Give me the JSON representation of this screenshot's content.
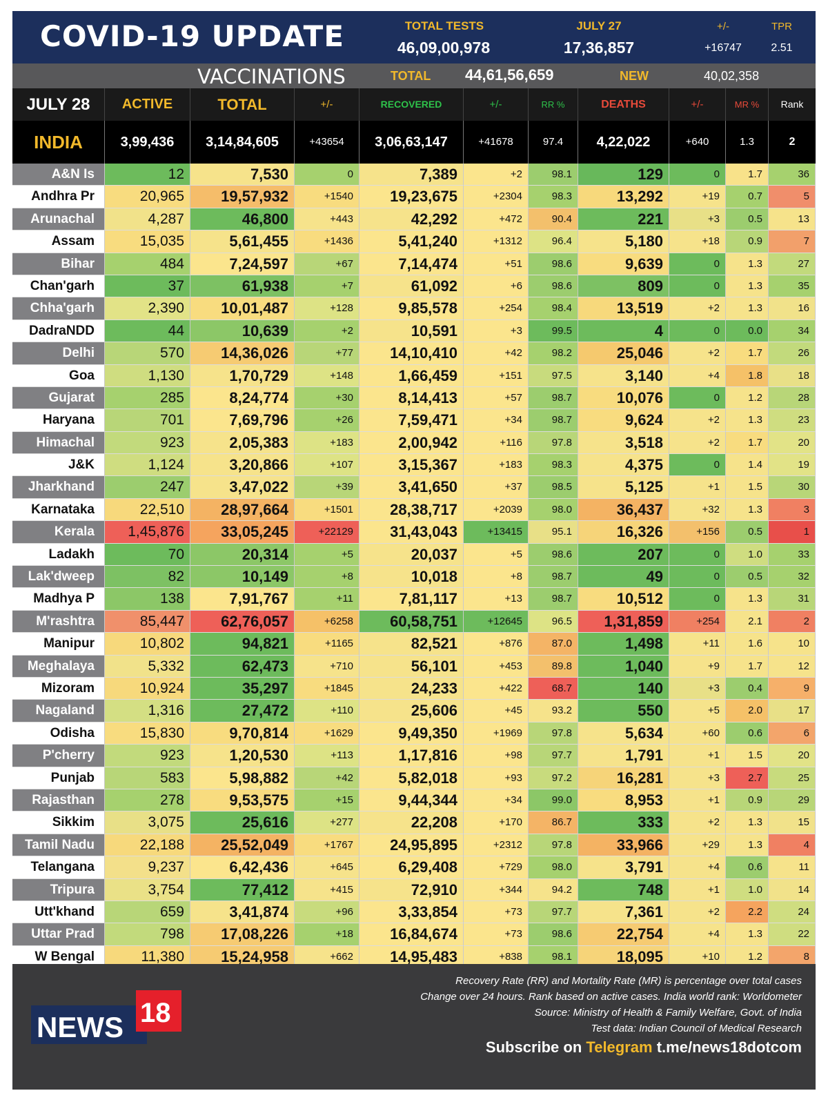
{
  "header": {
    "title": "COVID-19 UPDATE",
    "total_tests_label": "TOTAL TESTS",
    "total_tests_value": "46,09,00,978",
    "date_label": "JULY 27",
    "date_value": "17,36,857",
    "change_label": "+/-",
    "change_value": "+16747",
    "tpr_label": "TPR",
    "tpr_value": "2.51"
  },
  "vaccinations": {
    "title": "VACCINATIONS",
    "total_label": "TOTAL",
    "total_value": "44,61,56,659",
    "new_label": "NEW",
    "new_value": "40,02,358"
  },
  "columns": {
    "date": "JULY 28",
    "active": "ACTIVE",
    "total": "TOTAL",
    "total_change": "+/-",
    "recovered": "RECOVERED",
    "rec_change": "+/-",
    "rr": "RR %",
    "deaths": "DEATHS",
    "death_change": "+/-",
    "mr": "MR %",
    "rank": "Rank"
  },
  "india": {
    "name": "INDIA",
    "active": "3,99,436",
    "total": "3,14,84,605",
    "total_change": "+43654",
    "recovered": "3,06,63,147",
    "rec_change": "+41678",
    "rr": "97.4",
    "deaths": "4,22,022",
    "death_change": "+640",
    "mr": "1.3",
    "rank": "2"
  },
  "rows": [
    {
      "name": "A&N Is",
      "active": "12",
      "total": "7,530",
      "tc": "0",
      "rec": "7,389",
      "rc": "+2",
      "rr": "98.1",
      "deaths": "129",
      "dc": "0",
      "mr": "1.7",
      "rank": "36",
      "c": [
        "#6dbb5c",
        "#f6e38b",
        "#a6d16e",
        "#f6e38b",
        "#fbe58d",
        "#9ccd6e",
        "#68b85b",
        "#6dbb5c",
        "#f8e28a",
        "#a6d16e"
      ]
    },
    {
      "name": "Andhra Pr",
      "active": "20,965",
      "total": "19,57,932",
      "tc": "+1540",
      "rec": "19,23,675",
      "rc": "+2304",
      "rr": "98.3",
      "deaths": "13,292",
      "dc": "+19",
      "mr": "0.7",
      "rank": "5",
      "c": [
        "#f8dc7f",
        "#f5bd6a",
        "#f8dc7f",
        "#fbe58d",
        "#fbe58d",
        "#a6d16e",
        "#f7d97c",
        "#f6e38b",
        "#a6d16e",
        "#f08e6b"
      ]
    },
    {
      "name": "Arunachal",
      "active": "4,287",
      "total": "46,800",
      "tc": "+443",
      "rec": "42,292",
      "rc": "+472",
      "rr": "90.4",
      "deaths": "221",
      "dc": "+3",
      "mr": "0.5",
      "rank": "13",
      "c": [
        "#f1e28a",
        "#6dbb5c",
        "#f6e38b",
        "#f6e38b",
        "#fbe58d",
        "#f3c06c",
        "#6dbb5c",
        "#e8e087",
        "#9ccd6e",
        "#f6e38b"
      ]
    },
    {
      "name": "Assam",
      "active": "15,035",
      "total": "5,61,455",
      "tc": "+1436",
      "rec": "5,41,240",
      "rc": "+1312",
      "rr": "96.4",
      "deaths": "5,180",
      "dc": "+18",
      "mr": "0.9",
      "rank": "7",
      "c": [
        "#f8dc7f",
        "#f6e38b",
        "#f8dc7f",
        "#fbe58d",
        "#fbe58d",
        "#dde385",
        "#f6e38b",
        "#f6e38b",
        "#b8d678",
        "#f2a06b"
      ]
    },
    {
      "name": "Bihar",
      "active": "484",
      "total": "7,24,597",
      "tc": "+67",
      "rec": "7,14,474",
      "rc": "+51",
      "rr": "98.6",
      "deaths": "9,639",
      "dc": "0",
      "mr": "1.3",
      "rank": "27",
      "c": [
        "#a6d16e",
        "#fbe58d",
        "#b8d678",
        "#fbe58d",
        "#fbe58d",
        "#9ccd6e",
        "#f8dc7f",
        "#6dbb5c",
        "#f6e38b",
        "#c2da7c"
      ]
    },
    {
      "name": "Chan'garh",
      "active": "37",
      "total": "61,938",
      "tc": "+7",
      "rec": "61,092",
      "rc": "+6",
      "rr": "98.6",
      "deaths": "809",
      "dc": "0",
      "mr": "1.3",
      "rank": "35",
      "c": [
        "#6dbb5c",
        "#7dc163",
        "#a6d16e",
        "#f6e38b",
        "#fbe58d",
        "#9ccd6e",
        "#7dc163",
        "#6dbb5c",
        "#f6e38b",
        "#a6d16e"
      ]
    },
    {
      "name": "Chha'garh",
      "active": "2,390",
      "total": "10,01,487",
      "tc": "+128",
      "rec": "9,85,578",
      "rc": "+254",
      "rr": "98.4",
      "deaths": "13,519",
      "dc": "+2",
      "mr": "1.3",
      "rank": "16",
      "c": [
        "#e2e387",
        "#f8dc7f",
        "#dde385",
        "#fbe58d",
        "#fbe58d",
        "#a6d16e",
        "#f7d97c",
        "#f6e38b",
        "#f6e38b",
        "#f1e28a"
      ]
    },
    {
      "name": "DadraNDD",
      "active": "44",
      "total": "10,639",
      "tc": "+2",
      "rec": "10,591",
      "rc": "+3",
      "rr": "99.5",
      "deaths": "4",
      "dc": "0",
      "mr": "0.0",
      "rank": "34",
      "c": [
        "#6dbb5c",
        "#8cc767",
        "#a6d16e",
        "#f6e38b",
        "#fbe58d",
        "#6dbb5c",
        "#6dbb5c",
        "#6dbb5c",
        "#6dbb5c",
        "#a6d16e"
      ]
    },
    {
      "name": "Delhi",
      "active": "570",
      "total": "14,36,026",
      "tc": "+77",
      "rec": "14,10,410",
      "rc": "+42",
      "rr": "98.2",
      "deaths": "25,046",
      "dc": "+2",
      "mr": "1.7",
      "rank": "26",
      "c": [
        "#b8d678",
        "#f6cb72",
        "#b8d678",
        "#fbe58d",
        "#fbe58d",
        "#a6d16e",
        "#f5c96e",
        "#f6e38b",
        "#f8dc7f",
        "#c2da7c"
      ]
    },
    {
      "name": "Goa",
      "active": "1,130",
      "total": "1,70,729",
      "tc": "+148",
      "rec": "1,66,459",
      "rc": "+151",
      "rr": "97.5",
      "deaths": "3,140",
      "dc": "+4",
      "mr": "1.8",
      "rank": "18",
      "c": [
        "#cfdd80",
        "#f6e38b",
        "#dde385",
        "#fbe58d",
        "#fbe58d",
        "#c8db7d",
        "#f6e38b",
        "#f6e38b",
        "#f5c168",
        "#e8e087"
      ]
    },
    {
      "name": "Gujarat",
      "active": "285",
      "total": "8,24,774",
      "tc": "+30",
      "rec": "8,14,413",
      "rc": "+57",
      "rr": "98.7",
      "deaths": "10,076",
      "dc": "0",
      "mr": "1.2",
      "rank": "28",
      "c": [
        "#a6d16e",
        "#fbe58d",
        "#a6d16e",
        "#fbe58d",
        "#fbe58d",
        "#9ccd6e",
        "#f8dc7f",
        "#6dbb5c",
        "#f6e38b",
        "#b8d678"
      ]
    },
    {
      "name": "Haryana",
      "active": "701",
      "total": "7,69,796",
      "tc": "+26",
      "rec": "7,59,471",
      "rc": "+34",
      "rr": "98.7",
      "deaths": "9,624",
      "dc": "+2",
      "mr": "1.3",
      "rank": "23",
      "c": [
        "#b8d678",
        "#fbe58d",
        "#a6d16e",
        "#fbe58d",
        "#fbe58d",
        "#9ccd6e",
        "#f8dc7f",
        "#f6e38b",
        "#f6e38b",
        "#cfdd80"
      ]
    },
    {
      "name": "Himachal",
      "active": "923",
      "total": "2,05,383",
      "tc": "+183",
      "rec": "2,00,942",
      "rc": "+116",
      "rr": "97.8",
      "deaths": "3,518",
      "dc": "+2",
      "mr": "1.7",
      "rank": "20",
      "c": [
        "#c2da7c",
        "#f6e38b",
        "#dde385",
        "#fbe58d",
        "#fbe58d",
        "#b8d678",
        "#f6e38b",
        "#f6e38b",
        "#f8dc7f",
        "#e2e387"
      ]
    },
    {
      "name": "J&K",
      "active": "1,124",
      "total": "3,20,866",
      "tc": "+107",
      "rec": "3,15,367",
      "rc": "+183",
      "rr": "98.3",
      "deaths": "4,375",
      "dc": "0",
      "mr": "1.4",
      "rank": "19",
      "c": [
        "#cfdd80",
        "#f6e38b",
        "#dde385",
        "#fbe58d",
        "#fbe58d",
        "#a6d16e",
        "#f6e38b",
        "#6dbb5c",
        "#f6e38b",
        "#e2e387"
      ]
    },
    {
      "name": "Jharkhand",
      "active": "247",
      "total": "3,47,022",
      "tc": "+39",
      "rec": "3,41,650",
      "rc": "+37",
      "rr": "98.5",
      "deaths": "5,125",
      "dc": "+1",
      "mr": "1.5",
      "rank": "30",
      "c": [
        "#9ccd6e",
        "#f6e38b",
        "#b8d678",
        "#fbe58d",
        "#fbe58d",
        "#9ccd6e",
        "#f6e38b",
        "#f6e38b",
        "#f6e38b",
        "#b8d678"
      ]
    },
    {
      "name": "Karnataka",
      "active": "22,510",
      "total": "28,97,664",
      "tc": "+1501",
      "rec": "28,38,717",
      "rc": "+2039",
      "rr": "98.0",
      "deaths": "36,437",
      "dc": "+32",
      "mr": "1.3",
      "rank": "3",
      "c": [
        "#f7d97c",
        "#f4b363",
        "#f8dc7f",
        "#fbe58d",
        "#fbe58d",
        "#a6d16e",
        "#f4b363",
        "#f6e38b",
        "#f6e38b",
        "#f08062"
      ]
    },
    {
      "name": "Kerala",
      "active": "1,45,876",
      "total": "33,05,245",
      "tc": "+22129",
      "rec": "31,43,043",
      "rc": "+13415",
      "rr": "95.1",
      "deaths": "16,326",
      "dc": "+156",
      "mr": "0.5",
      "rank": "1",
      "c": [
        "#ee6058",
        "#f5a45e",
        "#ee6058",
        "#fbe58d",
        "#6dbb5c",
        "#e8e087",
        "#f6d479",
        "#f3c06c",
        "#9ccd6e",
        "#e84f4a"
      ]
    },
    {
      "name": "Ladakh",
      "active": "70",
      "total": "20,314",
      "tc": "+5",
      "rec": "20,037",
      "rc": "+5",
      "rr": "98.6",
      "deaths": "207",
      "dc": "0",
      "mr": "1.0",
      "rank": "33",
      "c": [
        "#6dbb5c",
        "#8cc767",
        "#a6d16e",
        "#f6e38b",
        "#fbe58d",
        "#9ccd6e",
        "#6dbb5c",
        "#6dbb5c",
        "#cfdd80",
        "#a6d16e"
      ]
    },
    {
      "name": "Lak'dweep",
      "active": "82",
      "total": "10,149",
      "tc": "+8",
      "rec": "10,018",
      "rc": "+8",
      "rr": "98.7",
      "deaths": "49",
      "dc": "0",
      "mr": "0.5",
      "rank": "32",
      "c": [
        "#7dc163",
        "#8cc767",
        "#a6d16e",
        "#f6e38b",
        "#fbe58d",
        "#9ccd6e",
        "#6dbb5c",
        "#6dbb5c",
        "#9ccd6e",
        "#a6d16e"
      ]
    },
    {
      "name": "Madhya P",
      "active": "138",
      "total": "7,91,767",
      "tc": "+11",
      "rec": "7,81,117",
      "rc": "+13",
      "rr": "98.7",
      "deaths": "10,512",
      "dc": "0",
      "mr": "1.3",
      "rank": "31",
      "c": [
        "#8cc767",
        "#fbe58d",
        "#a6d16e",
        "#fbe58d",
        "#fbe58d",
        "#9ccd6e",
        "#f8dc7f",
        "#6dbb5c",
        "#f6e38b",
        "#b8d678"
      ]
    },
    {
      "name": "M'rashtra",
      "active": "85,447",
      "total": "62,76,057",
      "tc": "+6258",
      "rec": "60,58,751",
      "rc": "+12645",
      "rr": "96.5",
      "deaths": "1,31,859",
      "dc": "+254",
      "mr": "2.1",
      "rank": "2",
      "c": [
        "#f0906b",
        "#ee6058",
        "#f5c168",
        "#6dbb5c",
        "#6dbb5c",
        "#dde385",
        "#ee6058",
        "#f08062",
        "#f6e38b",
        "#f08062"
      ]
    },
    {
      "name": "Manipur",
      "active": "10,802",
      "total": "94,821",
      "tc": "+1165",
      "rec": "82,521",
      "rc": "+876",
      "rr": "87.0",
      "deaths": "1,498",
      "dc": "+11",
      "mr": "1.6",
      "rank": "10",
      "c": [
        "#f7d97c",
        "#6dbb5c",
        "#f8dc7f",
        "#f6e38b",
        "#fbe58d",
        "#f4b466",
        "#6dbb5c",
        "#f6e38b",
        "#f6e38b",
        "#f6e38b"
      ]
    },
    {
      "name": "Meghalaya",
      "active": "5,332",
      "total": "62,473",
      "tc": "+710",
      "rec": "56,101",
      "rc": "+453",
      "rr": "89.8",
      "deaths": "1,040",
      "dc": "+9",
      "mr": "1.7",
      "rank": "12",
      "c": [
        "#f1e28a",
        "#6dbb5c",
        "#f6e38b",
        "#f6e38b",
        "#fbe58d",
        "#f3c06c",
        "#6dbb5c",
        "#f6e38b",
        "#f6e38b",
        "#f6e38b"
      ]
    },
    {
      "name": "Mizoram",
      "active": "10,924",
      "total": "35,297",
      "tc": "+1845",
      "rec": "24,233",
      "rc": "+422",
      "rr": "68.7",
      "deaths": "140",
      "dc": "+3",
      "mr": "0.4",
      "rank": "9",
      "c": [
        "#f7d97c",
        "#6dbb5c",
        "#f8dc7f",
        "#f6e38b",
        "#fbe58d",
        "#ee6058",
        "#6dbb5c",
        "#e8e087",
        "#9ccd6e",
        "#f6b06a"
      ]
    },
    {
      "name": "Nagaland",
      "active": "1,316",
      "total": "27,472",
      "tc": "+110",
      "rec": "25,606",
      "rc": "+45",
      "rr": "93.2",
      "deaths": "550",
      "dc": "+5",
      "mr": "2.0",
      "rank": "17",
      "c": [
        "#d4df83",
        "#6dbb5c",
        "#dde385",
        "#f6e38b",
        "#fbe58d",
        "#f6e38b",
        "#6dbb5c",
        "#f6e38b",
        "#f5c168",
        "#e8e087"
      ]
    },
    {
      "name": "Odisha",
      "active": "15,830",
      "total": "9,70,814",
      "tc": "+1629",
      "rec": "9,49,350",
      "rc": "+1969",
      "rr": "97.8",
      "deaths": "5,634",
      "dc": "+60",
      "mr": "0.6",
      "rank": "6",
      "c": [
        "#f8dc7f",
        "#f8dc7f",
        "#f8dc7f",
        "#fbe58d",
        "#fbe58d",
        "#b8d678",
        "#f6e38b",
        "#f6e38b",
        "#9ccd6e",
        "#f3a56b"
      ]
    },
    {
      "name": "P'cherry",
      "active": "923",
      "total": "1,20,530",
      "tc": "+113",
      "rec": "1,17,816",
      "rc": "+98",
      "rr": "97.7",
      "deaths": "1,791",
      "dc": "+1",
      "mr": "1.5",
      "rank": "20",
      "c": [
        "#c2da7c",
        "#f6e38b",
        "#dde385",
        "#fbe58d",
        "#fbe58d",
        "#b8d678",
        "#f6e38b",
        "#f6e38b",
        "#f6e38b",
        "#e2e387"
      ]
    },
    {
      "name": "Punjab",
      "active": "583",
      "total": "5,98,882",
      "tc": "+42",
      "rec": "5,82,018",
      "rc": "+93",
      "rr": "97.2",
      "deaths": "16,281",
      "dc": "+3",
      "mr": "2.7",
      "rank": "25",
      "c": [
        "#b8d678",
        "#fbe58d",
        "#b8d678",
        "#fbe58d",
        "#fbe58d",
        "#c8db7d",
        "#f6d479",
        "#f6e38b",
        "#ee6058",
        "#c8db7d"
      ]
    },
    {
      "name": "Rajasthan",
      "active": "278",
      "total": "9,53,575",
      "tc": "+15",
      "rec": "9,44,344",
      "rc": "+34",
      "rr": "99.0",
      "deaths": "8,953",
      "dc": "+1",
      "mr": "0.9",
      "rank": "29",
      "c": [
        "#a6d16e",
        "#f8dc7f",
        "#a6d16e",
        "#fbe58d",
        "#fbe58d",
        "#8cc767",
        "#f8dc7f",
        "#f6e38b",
        "#b8d678",
        "#b8d678"
      ]
    },
    {
      "name": "Sikkim",
      "active": "3,075",
      "total": "25,616",
      "tc": "+277",
      "rec": "22,208",
      "rc": "+170",
      "rr": "86.7",
      "deaths": "333",
      "dc": "+2",
      "mr": "1.3",
      "rank": "15",
      "c": [
        "#e8e087",
        "#6dbb5c",
        "#dde385",
        "#f6e38b",
        "#fbe58d",
        "#f4b466",
        "#6dbb5c",
        "#f6e38b",
        "#f6e38b",
        "#f1e28a"
      ]
    },
    {
      "name": "Tamil Nadu",
      "active": "22,188",
      "total": "25,52,049",
      "tc": "+1767",
      "rec": "24,95,895",
      "rc": "+2312",
      "rr": "97.8",
      "deaths": "33,966",
      "dc": "+29",
      "mr": "1.3",
      "rank": "4",
      "c": [
        "#f7d97c",
        "#f4b363",
        "#f8dc7f",
        "#fbe58d",
        "#fbe58d",
        "#b8d678",
        "#f4b363",
        "#f6e38b",
        "#f6e38b",
        "#f08062"
      ]
    },
    {
      "name": "Telangana",
      "active": "9,237",
      "total": "6,42,436",
      "tc": "+645",
      "rec": "6,29,408",
      "rc": "+729",
      "rr": "98.0",
      "deaths": "3,791",
      "dc": "+4",
      "mr": "0.6",
      "rank": "11",
      "c": [
        "#f3e08a",
        "#fbe58d",
        "#f6e38b",
        "#fbe58d",
        "#fbe58d",
        "#a6d16e",
        "#f6e38b",
        "#f6e38b",
        "#9ccd6e",
        "#f6e38b"
      ]
    },
    {
      "name": "Tripura",
      "active": "3,754",
      "total": "77,412",
      "tc": "+415",
      "rec": "72,910",
      "rc": "+344",
      "rr": "94.2",
      "deaths": "748",
      "dc": "+1",
      "mr": "1.0",
      "rank": "14",
      "c": [
        "#eae187",
        "#6dbb5c",
        "#f6e38b",
        "#f6e38b",
        "#fbe58d",
        "#f6e38b",
        "#6dbb5c",
        "#f6e38b",
        "#cfdd80",
        "#f1e28a"
      ]
    },
    {
      "name": "Utt'khand",
      "active": "659",
      "total": "3,41,874",
      "tc": "+96",
      "rec": "3,33,854",
      "rc": "+73",
      "rr": "97.7",
      "deaths": "7,361",
      "dc": "+2",
      "mr": "2.2",
      "rank": "24",
      "c": [
        "#b8d678",
        "#f6e38b",
        "#c8db7d",
        "#fbe58d",
        "#fbe58d",
        "#b8d678",
        "#f6e38b",
        "#f6e38b",
        "#f5a45e",
        "#cfdd80"
      ]
    },
    {
      "name": "Uttar Prad",
      "active": "798",
      "total": "17,08,226",
      "tc": "+18",
      "rec": "16,84,674",
      "rc": "+73",
      "rr": "98.6",
      "deaths": "22,754",
      "dc": "+4",
      "mr": "1.3",
      "rank": "22",
      "c": [
        "#c2da7c",
        "#f6cb72",
        "#a6d16e",
        "#fbe58d",
        "#fbe58d",
        "#9ccd6e",
        "#f6cb72",
        "#f6e38b",
        "#f6e38b",
        "#cfdd80"
      ]
    },
    {
      "name": "W Bengal",
      "active": "11,380",
      "total": "15,24,958",
      "tc": "+662",
      "rec": "14,95,483",
      "rc": "+838",
      "rr": "98.1",
      "deaths": "18,095",
      "dc": "+10",
      "mr": "1.2",
      "rank": "8",
      "c": [
        "#f7d97c",
        "#f6cb72",
        "#f6e38b",
        "#fbe58d",
        "#fbe58d",
        "#a6d16e",
        "#f6d479",
        "#f6e38b",
        "#f6e38b",
        "#f3a56b"
      ]
    }
  ],
  "footer": {
    "note1": "Recovery Rate (RR) and Mortality Rate (MR) is percentage over total cases",
    "note2": "Change over 24 hours. Rank based on active cases. India world rank: Worldometer",
    "note3": "Source: Ministry of Health & Family Welfare, Govt. of India",
    "note4": "Test data: Indian Council of Medical Research",
    "subscribe_prefix": "Subscribe on",
    "telegram_word": "Telegram",
    "telegram_link": "t.me/news18dotcom",
    "logo_text": "NEWS",
    "logo_number": "18"
  },
  "colors": {
    "navy": "#1c2f5c",
    "gold": "#f2b92b",
    "red": "#e84f4a",
    "green": "#6dbb5c"
  }
}
